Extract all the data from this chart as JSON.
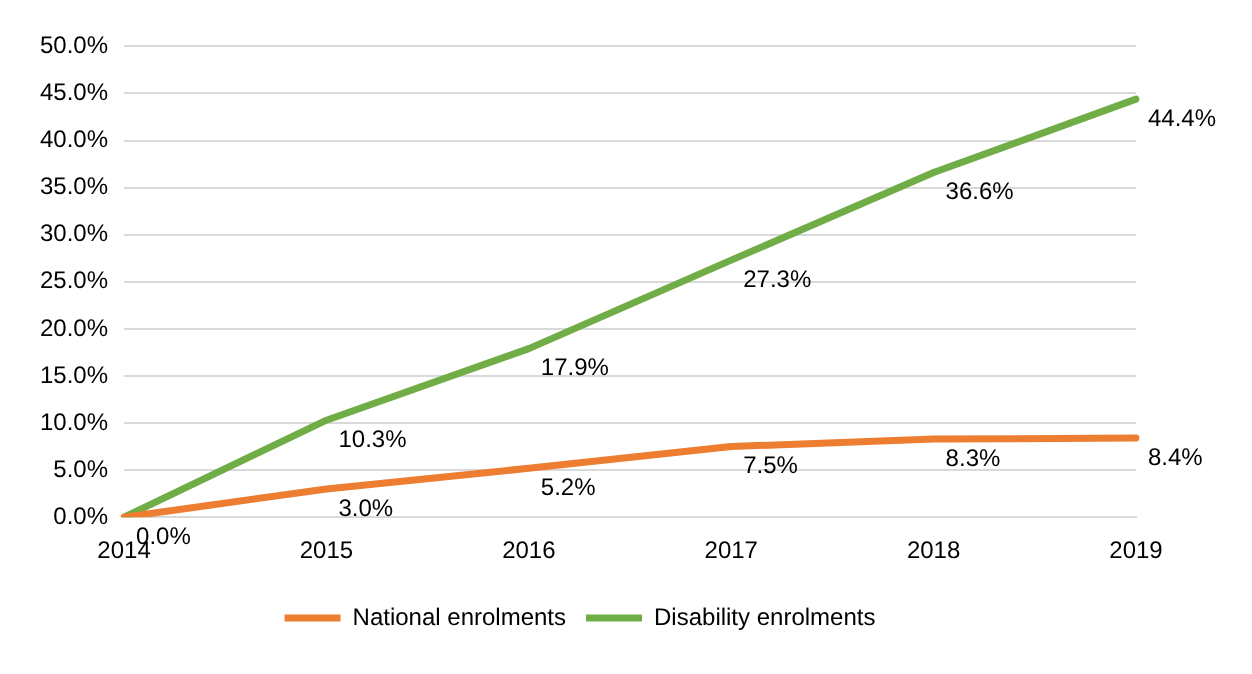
{
  "chart_data": {
    "type": "line",
    "categories": [
      "2014",
      "2015",
      "2016",
      "2017",
      "2018",
      "2019"
    ],
    "series": [
      {
        "name": "National enrolments",
        "color": "#ed7d31",
        "values": [
          0.0,
          3.0,
          5.2,
          7.5,
          8.3,
          8.4
        ],
        "value_labels": [
          "0.0%",
          "3.0%",
          "5.2%",
          "7.5%",
          "8.3%",
          "8.4%"
        ]
      },
      {
        "name": "Disability enrolments",
        "color": "#70ad47",
        "values": [
          0.0,
          10.3,
          17.9,
          27.3,
          36.6,
          44.4
        ],
        "value_labels": [
          null,
          "10.3%",
          "17.9%",
          "27.3%",
          "36.6%",
          "44.4%"
        ]
      }
    ],
    "ylim": [
      0,
      50
    ],
    "yticks": [
      {
        "value": 0,
        "label": "0.0%"
      },
      {
        "value": 5,
        "label": "5.0%"
      },
      {
        "value": 10,
        "label": "10.0%"
      },
      {
        "value": 15,
        "label": "15.0%"
      },
      {
        "value": 20,
        "label": "20.0%"
      },
      {
        "value": 25,
        "label": "25.0%"
      },
      {
        "value": 30,
        "label": "30.0%"
      },
      {
        "value": 35,
        "label": "35.0%"
      },
      {
        "value": 40,
        "label": "40.0%"
      },
      {
        "value": 45,
        "label": "45.0%"
      },
      {
        "value": 50,
        "label": "50.0%"
      }
    ],
    "grid": "y",
    "legend": "bottom",
    "marker": "none",
    "line_style": "solid"
  }
}
